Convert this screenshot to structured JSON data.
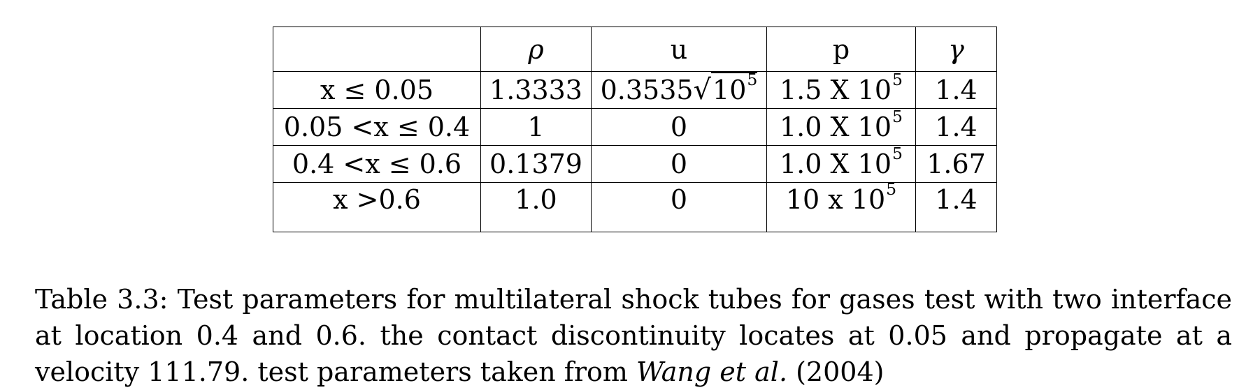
{
  "table": {
    "headers": [
      "",
      "ρ",
      "u",
      "p",
      "γ"
    ],
    "rows": [
      {
        "region": "x ≤ 0.05",
        "rho": "1.3333",
        "u_coef": "0.3535",
        "u_radical": "√",
        "u_base": "10",
        "u_exp": "5",
        "p_base": "1.5 X 10",
        "p_exp": "5",
        "gamma": "1.4"
      },
      {
        "region": "0.05 <x ≤ 0.4",
        "rho": "1",
        "u": "0",
        "p_base": "1.0 X 10",
        "p_exp": "5",
        "gamma": "1.4"
      },
      {
        "region": "0.4 <x ≤ 0.6",
        "rho": "0.1379",
        "u": "0",
        "p_base": "1.0 X 10",
        "p_exp": "5",
        "gamma": "1.67"
      },
      {
        "region": "x >0.6",
        "rho": "1.0",
        "u": "0",
        "p_base": "10 x 10",
        "p_exp": "5",
        "gamma": "1.4"
      }
    ]
  },
  "caption": {
    "text": "Table 3.3: Test parameters for multilateral shock tubes for gases test with two interface at location 0.4 and 0.6. the contact discontinuity locates at 0.05 and propagate at a velocity 111.79. test parameters taken from ",
    "authors": "Wang et al.",
    "year": " (2004)"
  }
}
